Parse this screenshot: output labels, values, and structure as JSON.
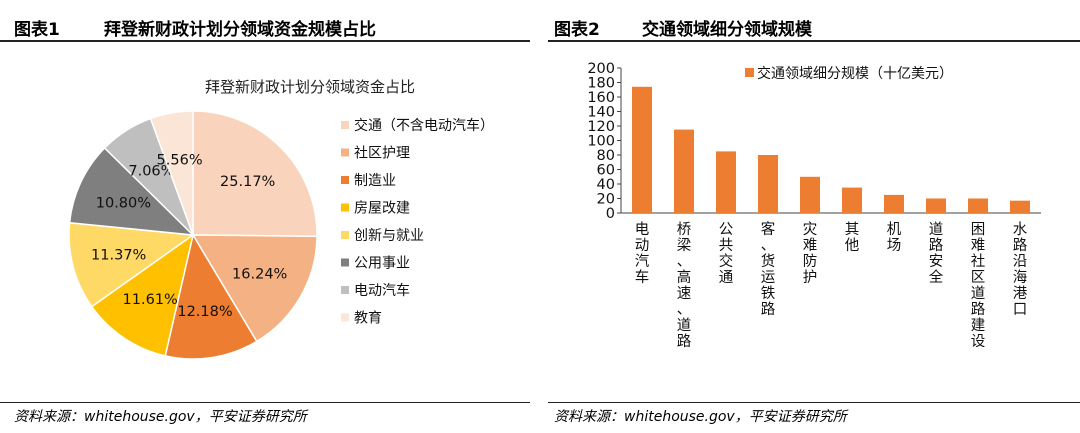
{
  "figures": [
    {
      "label": "图表1",
      "title": "拜登新财政计划分领域资金规模占比",
      "source": "资料来源：whitehouse.gov，平安证券研究所"
    },
    {
      "label": "图表2",
      "title": "交通领域细分领域规模",
      "source": "资料来源：whitehouse.gov，平安证券研究所"
    }
  ],
  "chart_data": [
    {
      "type": "pie",
      "title": "拜登新财政计划分领域资金占比",
      "start_angle_deg": 90,
      "direction": "clockwise",
      "legend_position": "right",
      "slices": [
        {
          "label": "交通（不含电动汽车）",
          "value": 25.17,
          "display": "25.17%",
          "color": "#FAD3BC"
        },
        {
          "label": "社区护理",
          "value": 16.24,
          "display": "16.24%",
          "color": "#F4B183"
        },
        {
          "label": "制造业",
          "value": 12.18,
          "display": "12.18%",
          "color": "#ED7D31"
        },
        {
          "label": "房屋改建",
          "value": 11.61,
          "display": "11.61%",
          "color": "#FFC000"
        },
        {
          "label": "创新与就业",
          "value": 11.37,
          "display": "11.37%",
          "color": "#FFD966"
        },
        {
          "label": "公用事业",
          "value": 10.8,
          "display": "10.80%",
          "color": "#7F7F7F"
        },
        {
          "label": "电动汽车",
          "value": 7.06,
          "display": "7.06%",
          "color": "#BFBFBF"
        },
        {
          "label": "教育",
          "value": 5.56,
          "display": "5.56%",
          "color": "#FBE5D6"
        }
      ]
    },
    {
      "type": "bar",
      "series": [
        {
          "name": "交通领域细分规模（十亿美元）",
          "color": "#ED7D31",
          "values": [
            174,
            115,
            85,
            80,
            50,
            35,
            25,
            20,
            20,
            17
          ]
        }
      ],
      "categories": [
        "电动汽车",
        "桥梁、高速、道路",
        "公共交通",
        "客、货运铁路",
        "灾难防护",
        "其他",
        "机场",
        "道路安全",
        "困难社区道路建设",
        "水路沿海港口"
      ],
      "ylim": [
        0,
        200
      ],
      "yticks": [
        0,
        20,
        40,
        60,
        80,
        100,
        120,
        140,
        160,
        180,
        200
      ],
      "grid": false,
      "legend_position": "top-right"
    }
  ]
}
